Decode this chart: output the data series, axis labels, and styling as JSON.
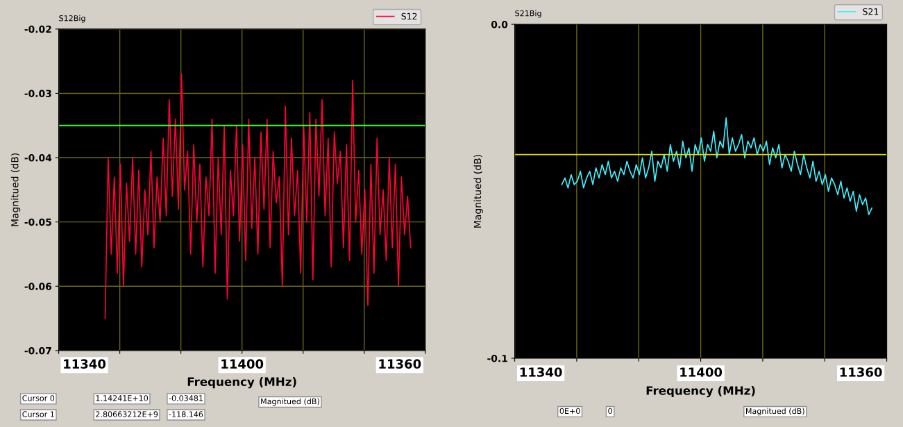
{
  "chart_data": [
    {
      "type": "line",
      "title": "S12Big",
      "xlabel": "Frequency (MHz)",
      "ylabel": "Magnitued (dB)",
      "ylim": [
        -0.07,
        -0.02
      ],
      "yticks": [
        -0.07,
        -0.06,
        -0.05,
        -0.04,
        -0.03,
        -0.02
      ],
      "tick_labels": "y",
      "grid": true,
      "legend": "top right",
      "categories": [
        null,
        null,
        null,
        null,
        null,
        null,
        null,
        null,
        null,
        null,
        null,
        null,
        null,
        null,
        null,
        null,
        null,
        null,
        null,
        null,
        null,
        null,
        null,
        null,
        null,
        null,
        null,
        null,
        null,
        null,
        null,
        null,
        null,
        null,
        null,
        null,
        null,
        null,
        null,
        null,
        null,
        null,
        null,
        null,
        null,
        null,
        null,
        null,
        null,
        null,
        null,
        null,
        null,
        null,
        null,
        null,
        null,
        null,
        null,
        null,
        null,
        null,
        null,
        null,
        null,
        null,
        null,
        null,
        null,
        null,
        null,
        null,
        null,
        null,
        null,
        null,
        null,
        null,
        null,
        null,
        null,
        null,
        null,
        null,
        null,
        null,
        null,
        null,
        null,
        null,
        null,
        null,
        null,
        null,
        null,
        null,
        null,
        null,
        null,
        null,
        null
      ],
      "series": [
        {
          "name": "S12",
          "color": "#ff0033",
          "values": [
            -0.065,
            -0.04,
            -0.055,
            -0.043,
            -0.058,
            -0.041,
            -0.06,
            -0.044,
            -0.053,
            -0.04,
            -0.055,
            -0.042,
            -0.057,
            -0.045,
            -0.052,
            -0.039,
            -0.054,
            -0.043,
            -0.05,
            -0.037,
            -0.049,
            -0.031,
            -0.046,
            -0.034,
            -0.048,
            -0.027,
            -0.045,
            -0.039,
            -0.055,
            -0.038,
            -0.05,
            -0.041,
            -0.057,
            -0.043,
            -0.049,
            -0.034,
            -0.058,
            -0.04,
            -0.052,
            -0.035,
            -0.062,
            -0.042,
            -0.049,
            -0.035,
            -0.053,
            -0.038,
            -0.056,
            -0.034,
            -0.051,
            -0.04,
            -0.055,
            -0.036,
            -0.048,
            -0.034,
            -0.054,
            -0.039,
            -0.047,
            -0.043,
            -0.06,
            -0.032,
            -0.052,
            -0.037,
            -0.049,
            -0.042,
            -0.058,
            -0.035,
            -0.05,
            -0.033,
            -0.059,
            -0.034,
            -0.046,
            -0.031,
            -0.049,
            -0.037,
            -0.057,
            -0.036,
            -0.044,
            -0.039,
            -0.054,
            -0.038,
            -0.056,
            -0.028,
            -0.05,
            -0.042,
            -0.055,
            -0.045,
            -0.063,
            -0.041,
            -0.058,
            -0.037,
            -0.052,
            -0.045,
            -0.056,
            -0.04,
            -0.054,
            -0.041,
            -0.06,
            -0.043,
            -0.052,
            -0.046,
            -0.054
          ]
        }
      ],
      "ref_lines": [
        {
          "axis": "y",
          "value": -0.035,
          "color": "#33ff33"
        }
      ],
      "annotations": [
        "11340",
        "11400",
        "11360",
        "Cursor 0",
        "1.14241E+10",
        "-0.03481",
        "Cursor 1",
        "2.80663212E+9",
        "-118.146",
        "Magnitued (dB)"
      ]
    },
    {
      "type": "line",
      "title": "S21Big",
      "xlabel": "Frequency (MHz)",
      "ylabel": "Magnitued (dB)",
      "ylim": [
        -0.1,
        0.0
      ],
      "yticks": [
        {
          "value": -0.1,
          "label": "-0.1"
        },
        {
          "value": 0.0,
          "label": "0.0"
        }
      ],
      "tick_labels": "y",
      "grid": "x",
      "legend": "top right",
      "categories": [
        null,
        null,
        null,
        null,
        null,
        null,
        null,
        null,
        null,
        null,
        null,
        null,
        null,
        null,
        null,
        null,
        null,
        null,
        null,
        null,
        null,
        null,
        null,
        null,
        null,
        null,
        null,
        null,
        null,
        null,
        null,
        null,
        null,
        null,
        null,
        null,
        null,
        null,
        null,
        null,
        null,
        null,
        null,
        null,
        null,
        null,
        null,
        null,
        null,
        null,
        null,
        null,
        null,
        null,
        null,
        null,
        null,
        null,
        null,
        null,
        null,
        null,
        null,
        null,
        null,
        null,
        null,
        null,
        null,
        null,
        null,
        null,
        null,
        null,
        null,
        null,
        null,
        null,
        null,
        null,
        null,
        null,
        null,
        null,
        null,
        null,
        null,
        null,
        null,
        null,
        null,
        null,
        null,
        null,
        null,
        null,
        null,
        null,
        null,
        null,
        null
      ],
      "series": [
        {
          "name": "S21",
          "color": "#40f0ff",
          "values": [
            -0.048,
            -0.046,
            -0.049,
            -0.045,
            -0.048,
            -0.047,
            -0.044,
            -0.049,
            -0.046,
            -0.044,
            -0.048,
            -0.043,
            -0.046,
            -0.042,
            -0.045,
            -0.041,
            -0.046,
            -0.044,
            -0.047,
            -0.043,
            -0.045,
            -0.041,
            -0.044,
            -0.046,
            -0.042,
            -0.045,
            -0.04,
            -0.046,
            -0.043,
            -0.038,
            -0.047,
            -0.041,
            -0.043,
            -0.039,
            -0.044,
            -0.036,
            -0.041,
            -0.038,
            -0.043,
            -0.035,
            -0.04,
            -0.037,
            -0.044,
            -0.036,
            -0.039,
            -0.034,
            -0.041,
            -0.036,
            -0.038,
            -0.032,
            -0.04,
            -0.035,
            -0.037,
            -0.028,
            -0.039,
            -0.034,
            -0.038,
            -0.036,
            -0.033,
            -0.04,
            -0.035,
            -0.037,
            -0.034,
            -0.039,
            -0.036,
            -0.038,
            -0.035,
            -0.042,
            -0.037,
            -0.04,
            -0.036,
            -0.043,
            -0.039,
            -0.041,
            -0.044,
            -0.038,
            -0.042,
            -0.045,
            -0.039,
            -0.043,
            -0.046,
            -0.041,
            -0.047,
            -0.044,
            -0.048,
            -0.045,
            -0.05,
            -0.046,
            -0.048,
            -0.051,
            -0.047,
            -0.052,
            -0.049,
            -0.053,
            -0.05,
            -0.056,
            -0.051,
            -0.054,
            -0.052,
            -0.057,
            -0.055
          ]
        }
      ],
      "ref_lines": [
        {
          "axis": "y",
          "value": -0.039,
          "color": "#d8d800"
        }
      ],
      "annotations": [
        "11340",
        "11400",
        "11360",
        "0E+0",
        "0",
        "Magnitued (dB)"
      ]
    }
  ]
}
